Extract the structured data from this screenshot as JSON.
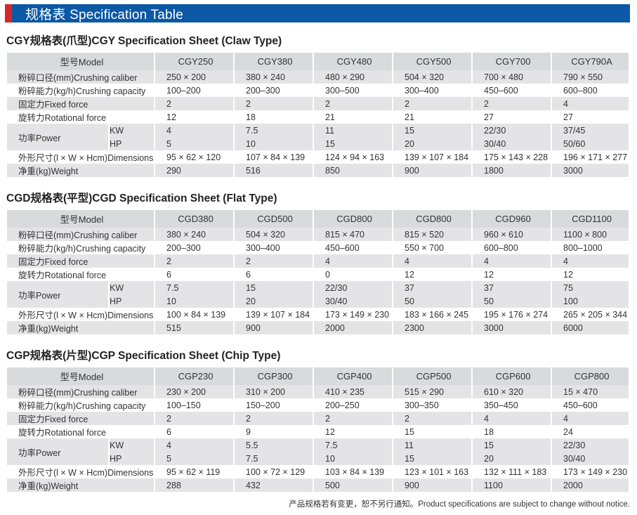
{
  "banner": {
    "title": "规格表 Specification Table",
    "accent": "#0b58a5",
    "marker": "#d8242b"
  },
  "labels": {
    "model": "型号Model",
    "caliber": "粉碎口径(mm)Crushing caliber",
    "capacity": "粉碎能力(kg/h)Crushing capacity",
    "fixed": "固定力Fixed force",
    "rotational": "旋转力Rotational force",
    "power": "功率Power",
    "kw": "KW",
    "hp": "HP",
    "dimensions": "外形尺寸(l × W × Hcm)Dimensions",
    "weight": "净重(kg)Weight"
  },
  "sections": [
    {
      "title": "CGY规格表(爪型)CGY Specification Sheet (Claw Type)",
      "models": [
        "CGY250",
        "CGY380",
        "CGY480",
        "CGY500",
        "CGY700",
        "CGY790A"
      ],
      "caliber": [
        "250 × 200",
        "380 × 240",
        "480 × 290",
        "504 × 320",
        "700 × 480",
        "790 × 550"
      ],
      "capacity": [
        "100–200",
        "200–300",
        "300–500",
        "300–400",
        "450–600",
        "600–800"
      ],
      "fixed": [
        "2",
        "2",
        "2",
        "2",
        "2",
        "4"
      ],
      "rotational": [
        "12",
        "18",
        "21",
        "21",
        "27",
        "27"
      ],
      "kw": [
        "4",
        "7.5",
        "11",
        "15",
        "22/30",
        "37/45"
      ],
      "hp": [
        "5",
        "10",
        "15",
        "20",
        "30/40",
        "50/60"
      ],
      "dimensions": [
        "95 × 62 × 120",
        "107 × 84 × 139",
        "124 × 94 × 163",
        "139 × 107 × 184",
        "175 × 143 × 228",
        "196 × 171 × 277"
      ],
      "weight": [
        "290",
        "516",
        "850",
        "900",
        "1800",
        "3000"
      ]
    },
    {
      "title": "CGD规格表(平型)CGD Specification Sheet (Flat Type)",
      "models": [
        "CGD380",
        "CGD500",
        "CGD800",
        "CGD800",
        "CGD960",
        "CGD1100"
      ],
      "caliber": [
        "380 × 240",
        "504 × 320",
        "815 × 470",
        "815 × 520",
        "960 × 610",
        "1100 × 800"
      ],
      "capacity": [
        "200–300",
        "300–400",
        "450–600",
        "550 × 700",
        "600–800",
        "800–1000"
      ],
      "fixed": [
        "2",
        "2",
        "4",
        "4",
        "4",
        "4"
      ],
      "rotational": [
        "6",
        "6",
        "0",
        "12",
        "12",
        "12"
      ],
      "kw": [
        "7.5",
        "15",
        "22/30",
        "37",
        "37",
        "75"
      ],
      "hp": [
        "10",
        "20",
        "30/40",
        "50",
        "50",
        "100"
      ],
      "dimensions": [
        "100 × 84 × 139",
        "139 × 107 × 184",
        "173 × 149 × 230",
        "183 × 166 × 245",
        "195 × 176 × 274",
        "265 × 205 × 344"
      ],
      "weight": [
        "515",
        "900",
        "2000",
        "2300",
        "3000",
        "6000"
      ]
    },
    {
      "title": "CGP规格表(片型)CGP Specification Sheet (Chip Type)",
      "models": [
        "CGP230",
        "CGP300",
        "CGP400",
        "CGP500",
        "CGP600",
        "CGP800"
      ],
      "caliber": [
        "230 × 200",
        "310 × 200",
        "410 × 235",
        "515 × 290",
        "610 × 320",
        "15 × 470"
      ],
      "capacity": [
        "100–150",
        "150–200",
        "200–250",
        "300–350",
        "350–450",
        "450–600"
      ],
      "fixed": [
        "2",
        "2",
        "2",
        "2",
        "4",
        "4"
      ],
      "rotational": [
        "6",
        "9",
        "12",
        "15",
        "18",
        "24"
      ],
      "kw": [
        "4",
        "5.5",
        "7.5",
        "11",
        "15",
        "22/30"
      ],
      "hp": [
        "5",
        "7.5",
        "10",
        "15",
        "20",
        "30/40"
      ],
      "dimensions": [
        "95 × 62 × 119",
        "100 × 72 × 129",
        "103 × 84 × 139",
        "123 × 101 × 163",
        "132 × 111 × 183",
        "173 × 149 × 230"
      ],
      "weight": [
        "288",
        "432",
        "500",
        "900",
        "1100",
        "2000"
      ]
    }
  ],
  "footer": {
    "note": "产品规格若有变更，恕不另行通知。Product specifications are subject to change without notice."
  }
}
